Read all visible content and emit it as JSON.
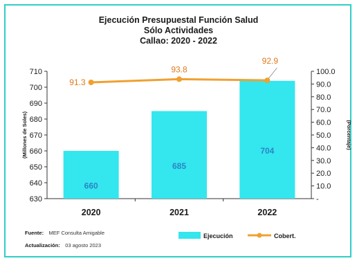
{
  "chart_data": {
    "type": "bar",
    "title_lines": [
      "Ejecución Presupuestal Función Salud",
      "Sólo Actividades",
      "Callao: 2020 - 2022"
    ],
    "categories": [
      "2020",
      "2021",
      "2022"
    ],
    "series": [
      {
        "name": "Ejecución",
        "type": "bar",
        "axis": "left",
        "values": [
          660,
          685,
          704
        ],
        "labels": [
          "660",
          "685",
          "704"
        ],
        "color": "#34e6ee"
      },
      {
        "name": "Cobert.",
        "type": "line",
        "axis": "right",
        "values": [
          91.3,
          93.8,
          92.9
        ],
        "labels": [
          "91.3",
          "93.8",
          "92.9"
        ],
        "color": "#f0a030"
      }
    ],
    "ylabel": "(Millones de Soles)",
    "ylim": [
      630,
      710
    ],
    "yticks": [
      "710",
      "700",
      "690",
      "680",
      "670",
      "660",
      "650",
      "640",
      "630"
    ],
    "y2label": "(Porcentaje)",
    "y2lim": [
      0,
      100
    ],
    "y2ticks": [
      "100.0",
      "90.0",
      "80.0",
      "70.0",
      "60.0",
      "50.0",
      "40.0",
      "30.0",
      "20.0",
      "10.0",
      "-"
    ],
    "legend_position": "bottom-right",
    "grid": false
  },
  "footer": {
    "source_label": "Fuente:",
    "source_text": "MEF Consulta Amigable",
    "update_label": "Actualización:",
    "update_text": "03 agosto 2023"
  },
  "colors": {
    "border": "#2ecfc7",
    "bar": "#34e6ee",
    "line": "#f0a030",
    "bar_label": "#2a86c6",
    "line_label": "#e07a1c"
  }
}
